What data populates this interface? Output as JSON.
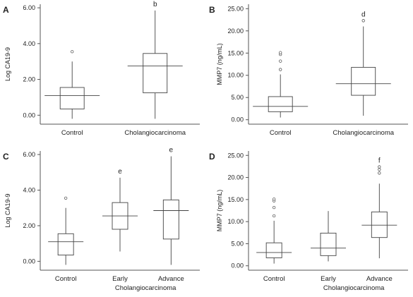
{
  "chart_data": [
    {
      "panel": "A",
      "type": "box",
      "ylabel": "Log CA19-9",
      "ylim": [
        -0.5,
        6.2
      ],
      "yticks": [
        "0.00",
        "2.00",
        "4.00",
        "6.00"
      ],
      "ytick_values": [
        0,
        2,
        4,
        6
      ],
      "categories": [
        "Control",
        "Cholangiocarcinoma"
      ],
      "group_label": "",
      "boxes": [
        {
          "min": -0.2,
          "q1": 0.35,
          "median": 1.1,
          "q3": 1.55,
          "max": 3.0,
          "outliers": [
            3.55
          ],
          "sig": ""
        },
        {
          "min": -0.2,
          "q1": 1.25,
          "median": 2.75,
          "q3": 3.45,
          "max": 5.85,
          "outliers": [],
          "sig": "b"
        }
      ]
    },
    {
      "panel": "B",
      "type": "box",
      "ylabel": "MMP7 (ng/mL)",
      "ylim": [
        -1,
        26
      ],
      "yticks": [
        "0.00",
        "5.00",
        "10.00",
        "15.00",
        "20.00",
        "25.00"
      ],
      "ytick_values": [
        0,
        5,
        10,
        15,
        20,
        25
      ],
      "categories": [
        "Control",
        "Cholangiocarcinoma"
      ],
      "group_label": "",
      "boxes": [
        {
          "min": 0.5,
          "q1": 1.8,
          "median": 3.0,
          "q3": 5.2,
          "max": 10.2,
          "outliers": [
            11.3,
            13.2,
            14.7,
            15.1
          ],
          "sig": ""
        },
        {
          "min": 0.9,
          "q1": 5.5,
          "median": 8.1,
          "q3": 11.8,
          "max": 21.0,
          "outliers": [
            22.3
          ],
          "sig": "d"
        }
      ]
    },
    {
      "panel": "C",
      "type": "box",
      "ylabel": "Log CA19-9",
      "ylim": [
        -0.5,
        6.2
      ],
      "yticks": [
        "0.00",
        "2.00",
        "4.00",
        "6.00"
      ],
      "ytick_values": [
        0,
        2,
        4,
        6
      ],
      "categories": [
        "Control",
        "Early",
        "Advance"
      ],
      "group_label": "Cholangiocarcinoma",
      "boxes": [
        {
          "min": -0.2,
          "q1": 0.35,
          "median": 1.1,
          "q3": 1.55,
          "max": 3.0,
          "outliers": [
            3.55
          ],
          "sig": ""
        },
        {
          "min": 0.55,
          "q1": 1.8,
          "median": 2.55,
          "q3": 3.3,
          "max": 4.7,
          "outliers": [],
          "sig": "e"
        },
        {
          "min": -0.2,
          "q1": 1.25,
          "median": 2.85,
          "q3": 3.45,
          "max": 5.9,
          "outliers": [],
          "sig": "e"
        }
      ]
    },
    {
      "panel": "D",
      "type": "box",
      "ylabel": "MMP7 (ng/mL)",
      "ylim": [
        -1,
        26
      ],
      "yticks": [
        "0.00",
        "5.00",
        "10.00",
        "15.00",
        "20.00",
        "25.00"
      ],
      "ytick_values": [
        0,
        5,
        10,
        15,
        20,
        25
      ],
      "categories": [
        "Control",
        "Early",
        "Advance"
      ],
      "group_label": "Cholangiocarcinoma",
      "boxes": [
        {
          "min": 0.5,
          "q1": 1.8,
          "median": 3.0,
          "q3": 5.2,
          "max": 10.2,
          "outliers": [
            11.3,
            13.2,
            14.7,
            15.1
          ],
          "sig": ""
        },
        {
          "min": 1.0,
          "q1": 2.3,
          "median": 4.0,
          "q3": 7.4,
          "max": 12.4,
          "outliers": [],
          "sig": ""
        },
        {
          "min": 1.7,
          "q1": 6.4,
          "median": 9.2,
          "q3": 12.2,
          "max": 18.6,
          "outliers": [
            21.0,
            21.8,
            22.4
          ],
          "sig": "f"
        }
      ]
    }
  ]
}
